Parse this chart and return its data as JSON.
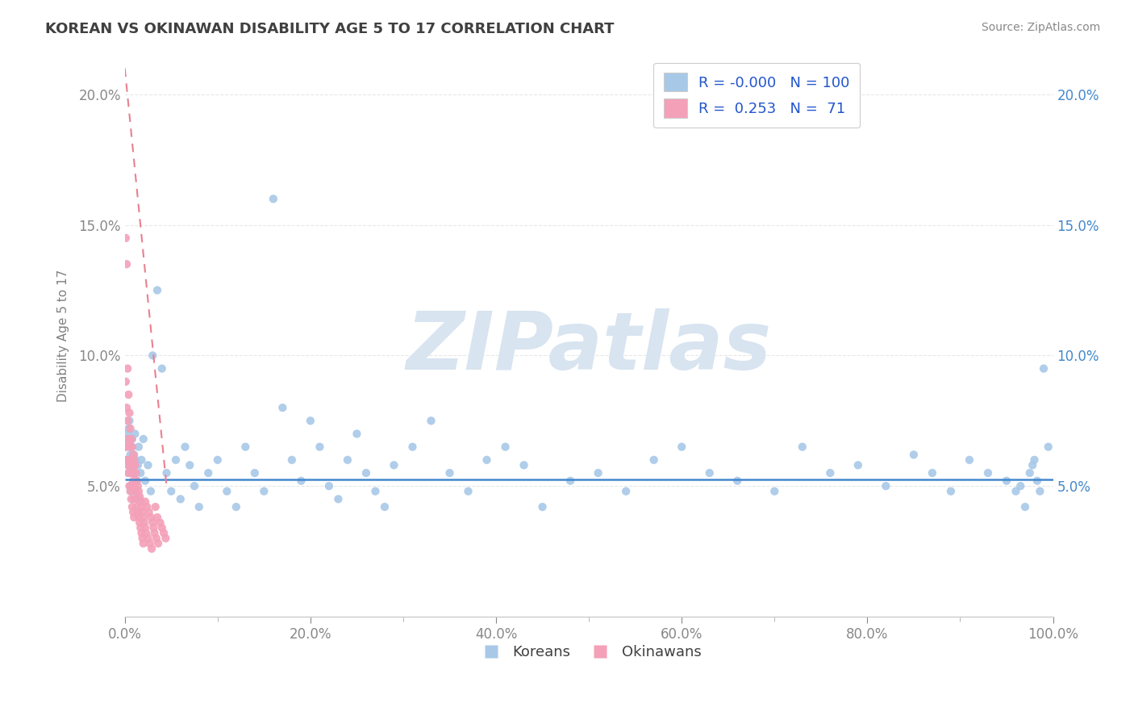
{
  "title": "KOREAN VS OKINAWAN DISABILITY AGE 5 TO 17 CORRELATION CHART",
  "source_text": "Source: ZipAtlas.com",
  "ylabel": "Disability Age 5 to 17",
  "xlim": [
    0.0,
    1.0
  ],
  "ylim": [
    0.0,
    0.215
  ],
  "korean_R": "-0.000",
  "korean_N": "100",
  "okinawan_R": "0.253",
  "okinawan_N": "71",
  "korean_color": "#a8c8e8",
  "okinawan_color": "#f4a0b8",
  "korean_trend_color": "#4488cc",
  "okinawan_trend_color": "#e88090",
  "watermark_color": "#d8e4f0",
  "background_color": "#ffffff",
  "grid_color": "#e8e8e8",
  "title_color": "#404040",
  "axis_label_color": "#808080",
  "legend_label_color": "#2255cc",
  "koreans_x": [
    0.001,
    0.002,
    0.003,
    0.003,
    0.004,
    0.004,
    0.005,
    0.005,
    0.006,
    0.006,
    0.007,
    0.007,
    0.008,
    0.008,
    0.009,
    0.009,
    0.01,
    0.01,
    0.011,
    0.011,
    0.012,
    0.012,
    0.013,
    0.014,
    0.015,
    0.016,
    0.017,
    0.018,
    0.02,
    0.022,
    0.025,
    0.028,
    0.03,
    0.035,
    0.04,
    0.045,
    0.05,
    0.055,
    0.06,
    0.065,
    0.07,
    0.075,
    0.08,
    0.09,
    0.1,
    0.11,
    0.12,
    0.13,
    0.14,
    0.15,
    0.16,
    0.17,
    0.18,
    0.19,
    0.2,
    0.21,
    0.22,
    0.23,
    0.24,
    0.25,
    0.26,
    0.27,
    0.28,
    0.29,
    0.31,
    0.33,
    0.35,
    0.37,
    0.39,
    0.41,
    0.43,
    0.45,
    0.48,
    0.51,
    0.54,
    0.57,
    0.6,
    0.63,
    0.66,
    0.7,
    0.73,
    0.76,
    0.79,
    0.82,
    0.85,
    0.87,
    0.89,
    0.91,
    0.93,
    0.95,
    0.96,
    0.965,
    0.97,
    0.975,
    0.978,
    0.98,
    0.983,
    0.986,
    0.99,
    0.995
  ],
  "koreans_y": [
    0.065,
    0.068,
    0.07,
    0.06,
    0.055,
    0.072,
    0.058,
    0.075,
    0.05,
    0.062,
    0.048,
    0.065,
    0.055,
    0.068,
    0.058,
    0.05,
    0.062,
    0.045,
    0.055,
    0.07,
    0.048,
    0.06,
    0.052,
    0.058,
    0.065,
    0.045,
    0.055,
    0.06,
    0.068,
    0.052,
    0.058,
    0.048,
    0.1,
    0.125,
    0.095,
    0.055,
    0.048,
    0.06,
    0.045,
    0.065,
    0.058,
    0.05,
    0.042,
    0.055,
    0.06,
    0.048,
    0.042,
    0.065,
    0.055,
    0.048,
    0.16,
    0.08,
    0.06,
    0.052,
    0.075,
    0.065,
    0.05,
    0.045,
    0.06,
    0.07,
    0.055,
    0.048,
    0.042,
    0.058,
    0.065,
    0.075,
    0.055,
    0.048,
    0.06,
    0.065,
    0.058,
    0.042,
    0.052,
    0.055,
    0.048,
    0.06,
    0.065,
    0.055,
    0.052,
    0.048,
    0.065,
    0.055,
    0.058,
    0.05,
    0.062,
    0.055,
    0.048,
    0.06,
    0.055,
    0.052,
    0.048,
    0.05,
    0.042,
    0.055,
    0.058,
    0.06,
    0.052,
    0.048,
    0.095,
    0.065
  ],
  "okinawans_x": [
    0.001,
    0.001,
    0.001,
    0.002,
    0.002,
    0.002,
    0.003,
    0.003,
    0.003,
    0.004,
    0.004,
    0.004,
    0.005,
    0.005,
    0.005,
    0.006,
    0.006,
    0.006,
    0.007,
    0.007,
    0.007,
    0.008,
    0.008,
    0.008,
    0.009,
    0.009,
    0.009,
    0.01,
    0.01,
    0.01,
    0.011,
    0.011,
    0.012,
    0.012,
    0.013,
    0.013,
    0.014,
    0.014,
    0.015,
    0.015,
    0.016,
    0.016,
    0.017,
    0.017,
    0.018,
    0.018,
    0.019,
    0.019,
    0.02,
    0.02,
    0.021,
    0.022,
    0.022,
    0.023,
    0.024,
    0.025,
    0.026,
    0.027,
    0.028,
    0.029,
    0.03,
    0.031,
    0.032,
    0.033,
    0.034,
    0.035,
    0.036,
    0.038,
    0.04,
    0.042,
    0.044
  ],
  "okinawans_y": [
    0.145,
    0.09,
    0.065,
    0.135,
    0.08,
    0.06,
    0.095,
    0.075,
    0.058,
    0.085,
    0.068,
    0.055,
    0.078,
    0.065,
    0.05,
    0.072,
    0.06,
    0.048,
    0.068,
    0.058,
    0.045,
    0.065,
    0.055,
    0.042,
    0.062,
    0.052,
    0.04,
    0.06,
    0.05,
    0.038,
    0.058,
    0.048,
    0.055,
    0.045,
    0.052,
    0.042,
    0.05,
    0.04,
    0.048,
    0.038,
    0.046,
    0.036,
    0.044,
    0.034,
    0.042,
    0.032,
    0.04,
    0.03,
    0.038,
    0.028,
    0.036,
    0.034,
    0.044,
    0.032,
    0.042,
    0.03,
    0.04,
    0.028,
    0.038,
    0.026,
    0.036,
    0.034,
    0.032,
    0.042,
    0.03,
    0.038,
    0.028,
    0.036,
    0.034,
    0.032,
    0.03
  ],
  "korean_trend_y_start": 0.0525,
  "korean_trend_y_end": 0.0525,
  "okinawan_trend_x_start": 0.0,
  "okinawan_trend_y_start": 0.21,
  "okinawan_trend_x_end": 0.045,
  "okinawan_trend_y_end": 0.05
}
